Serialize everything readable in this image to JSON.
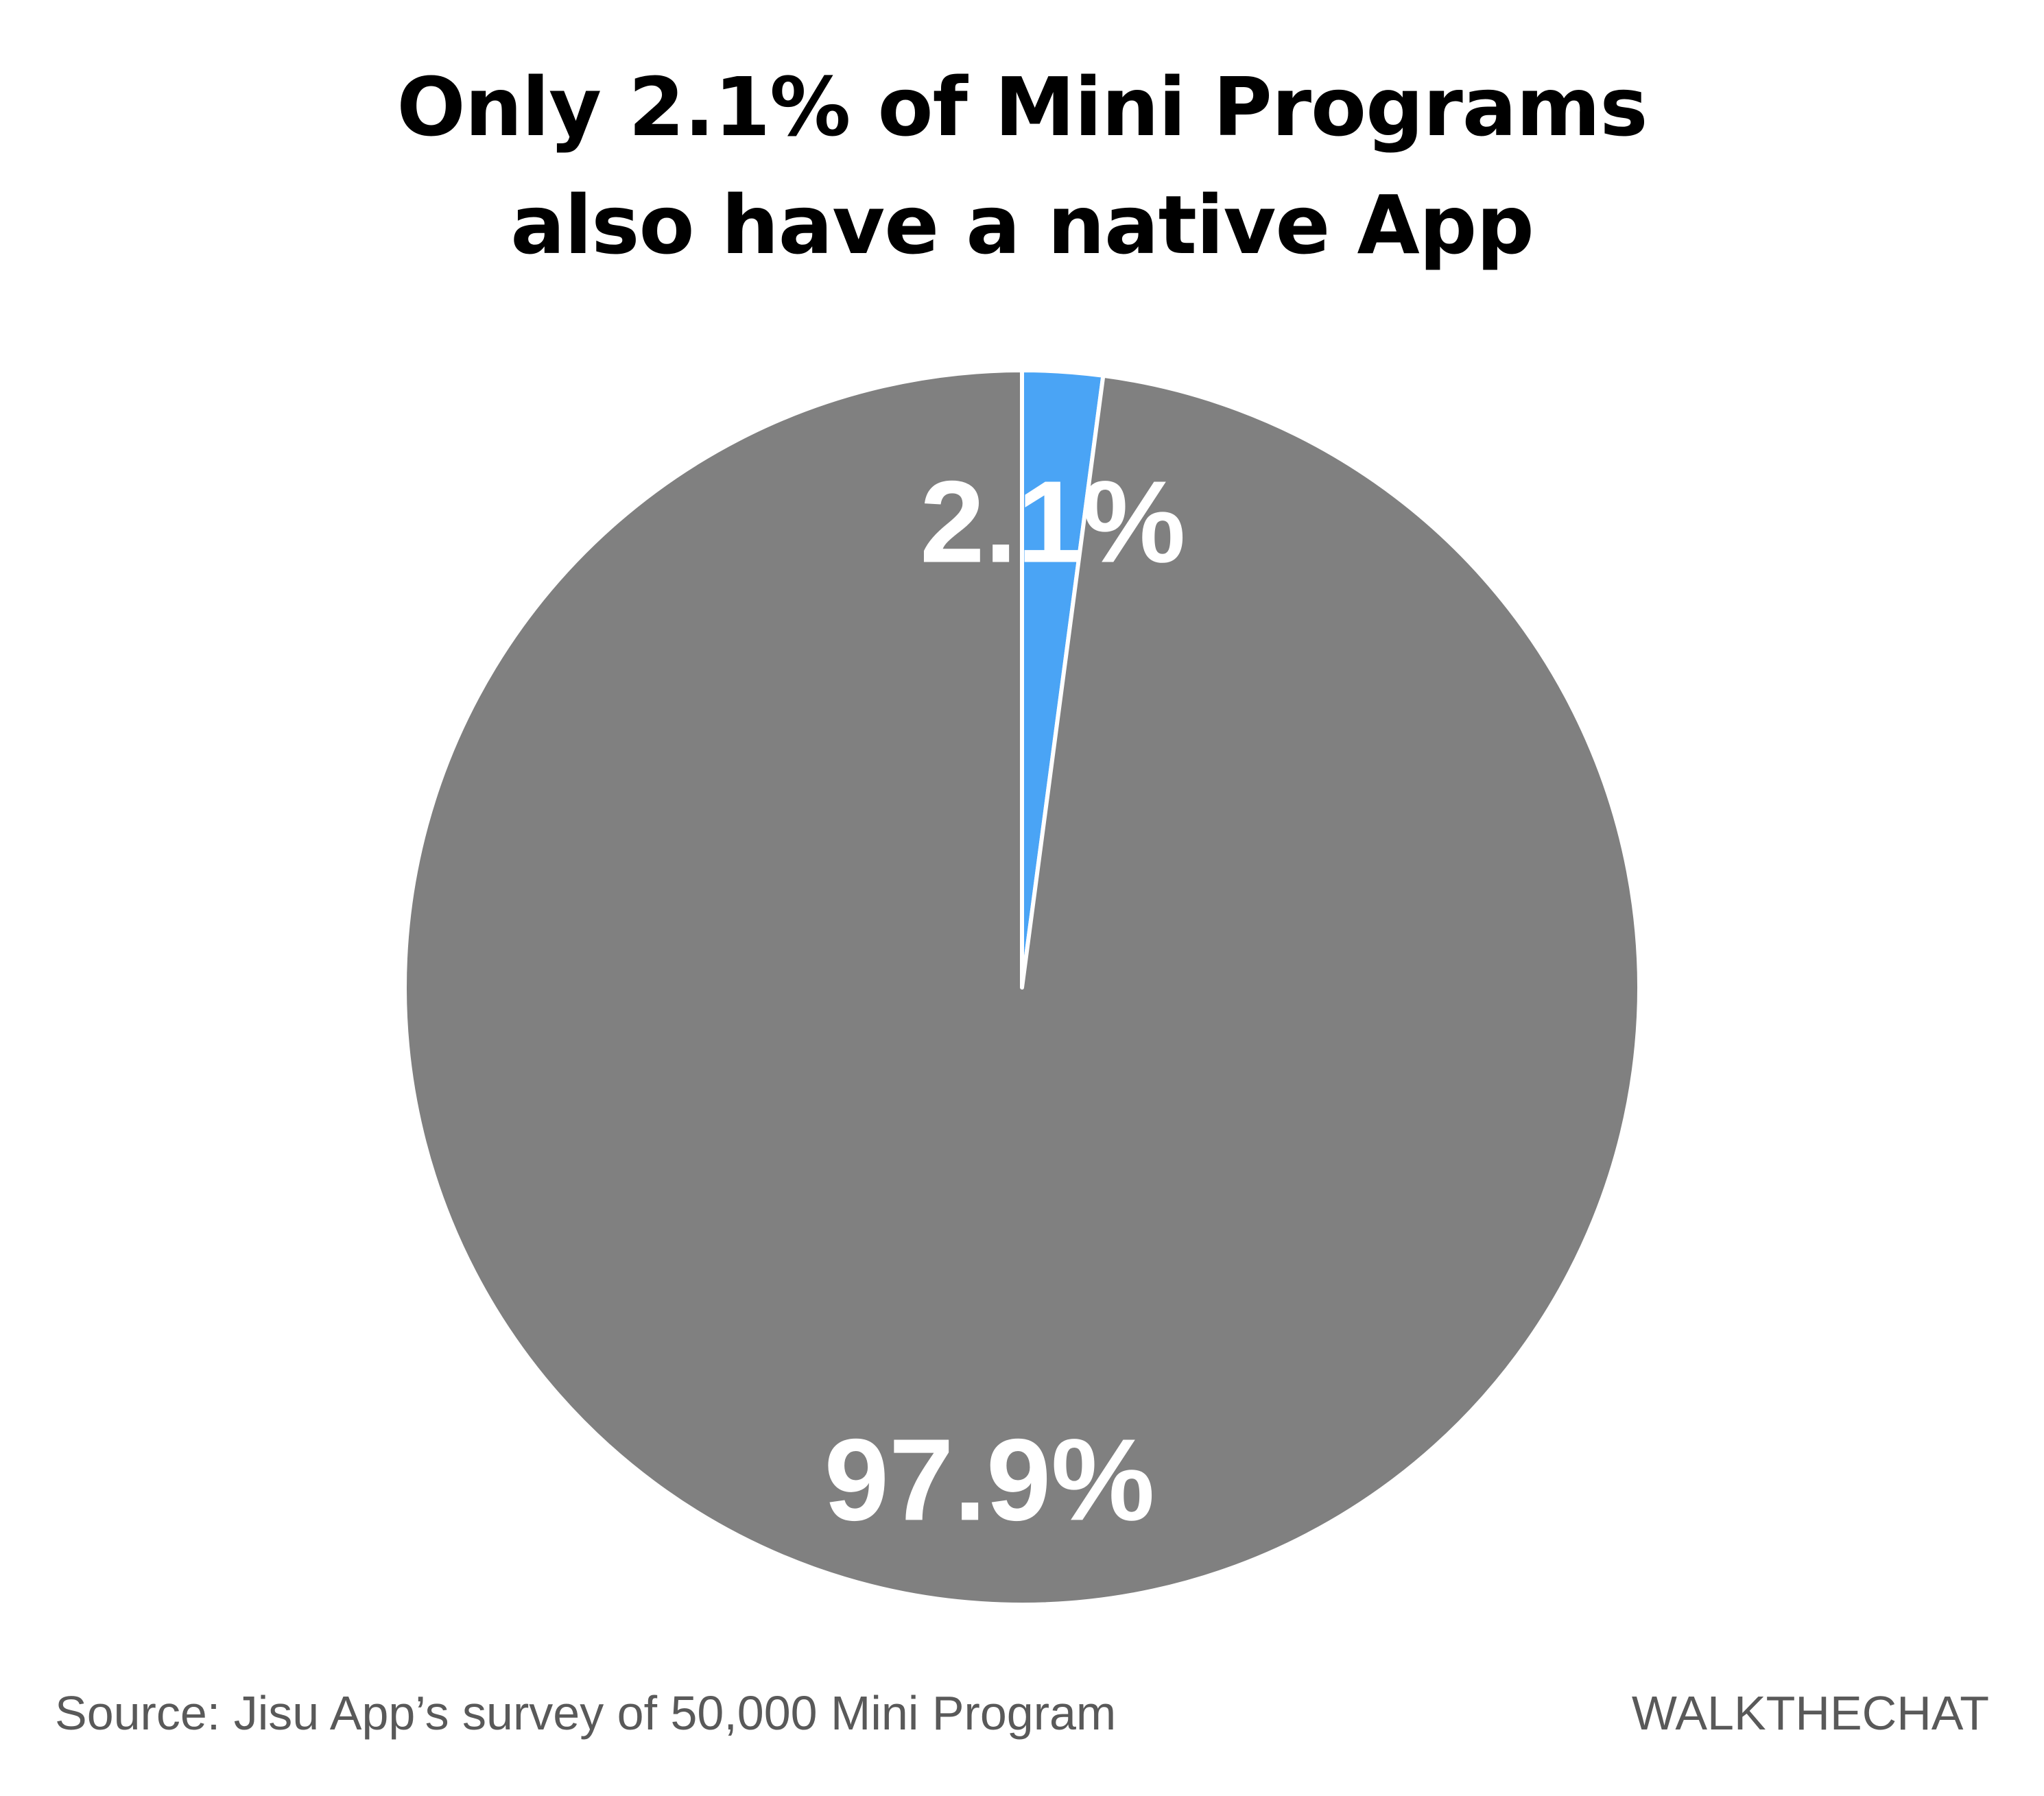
{
  "chart_data": {
    "type": "pie",
    "title": [
      "Only 2.1% of Mini Programs",
      "also have a native App"
    ],
    "slices": [
      {
        "value": 2.1,
        "label": "2.1%",
        "color": "#4aa4f5"
      },
      {
        "value": 97.9,
        "label": "97.9%",
        "color": "#808080"
      }
    ],
    "start_angle": "12 o'clock",
    "direction": "clockwise",
    "label_color": "#ffffff",
    "separator_color": "#ffffff"
  },
  "footer": {
    "source": "Source: Jisu App’s survey of 50,000 Mini Program",
    "brand": "WALKTHECHAT"
  }
}
